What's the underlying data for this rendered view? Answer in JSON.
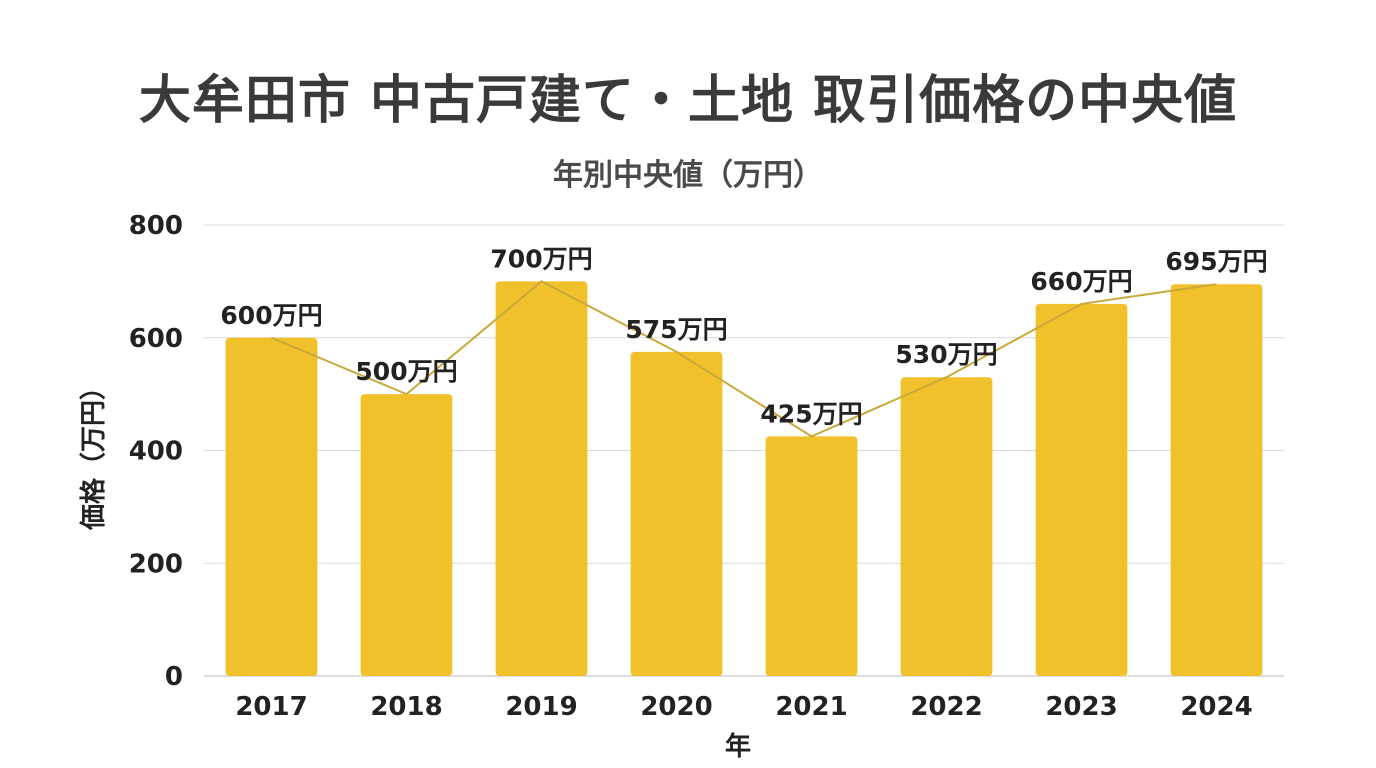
{
  "chart_data": {
    "type": "bar",
    "title": "大牟田市 中古戸建て・土地 取引価格の中央値",
    "subtitle": "年別中央値（万円）",
    "xlabel": "年",
    "ylabel": "価格（万円）",
    "categories": [
      "2017",
      "2018",
      "2019",
      "2020",
      "2021",
      "2022",
      "2023",
      "2024"
    ],
    "values": [
      600,
      500,
      700,
      575,
      425,
      530,
      660,
      695
    ],
    "data_labels": [
      "600万円",
      "500万円",
      "700万円",
      "575万円",
      "425万円",
      "530万円",
      "660万円",
      "695万円"
    ],
    "yticks": [
      0,
      200,
      400,
      600,
      800
    ],
    "ylim": [
      0,
      800
    ],
    "grid": true,
    "legend": "none",
    "overlay_line": true,
    "colors": {
      "bar": "#f0c12b",
      "line": "#c9a93a",
      "grid": "#d9d9d9",
      "text": "#222222"
    }
  }
}
